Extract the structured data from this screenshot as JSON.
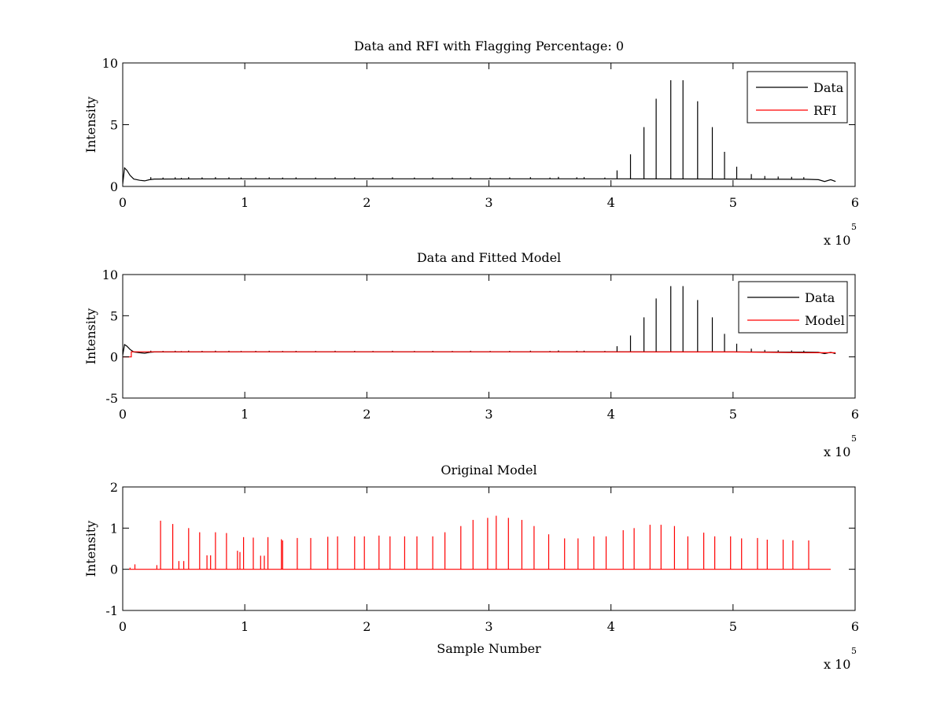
{
  "figure": {
    "background": "#ffffff",
    "axis_color": "#000000"
  },
  "chart_data": [
    {
      "type": "line",
      "title": "Data and RFI with Flagging Percentage: 0",
      "xlabel": "",
      "ylabel": "Intensity",
      "xlim": [
        0,
        600000
      ],
      "ylim": [
        0,
        10
      ],
      "xticks": [
        0,
        1,
        2,
        3,
        4,
        5,
        6
      ],
      "yticks": [
        0,
        5,
        10
      ],
      "x_exponent_base": "x 10",
      "x_exponent_power": "5",
      "legend": {
        "position": "top-right",
        "entries": [
          "Data",
          "RFI"
        ]
      },
      "series": [
        {
          "name": "Data",
          "color": "#000000",
          "baseline": [
            [
              0,
              0.2
            ],
            [
              1500,
              1.5
            ],
            [
              3500,
              1.3
            ],
            [
              6000,
              0.9
            ],
            [
              9000,
              0.6
            ],
            [
              14000,
              0.5
            ],
            [
              18000,
              0.45
            ],
            [
              22000,
              0.55
            ],
            [
              26000,
              0.6
            ],
            [
              100000,
              0.62
            ],
            [
              200000,
              0.62
            ],
            [
              300000,
              0.62
            ],
            [
              400000,
              0.62
            ],
            [
              500000,
              0.6
            ],
            [
              560000,
              0.58
            ],
            [
              570000,
              0.55
            ],
            [
              575000,
              0.4
            ],
            [
              580000,
              0.55
            ],
            [
              584000,
              0.4
            ]
          ],
          "spike_x": [
            23000,
            33000,
            43000,
            48000,
            54000,
            65000,
            76000,
            87000,
            97000,
            109000,
            120000,
            131000,
            142000,
            158000,
            174000,
            190000,
            205000,
            221000,
            239000,
            254000,
            270000,
            285000,
            301000,
            317000,
            334000,
            350000,
            357000,
            372000,
            378000,
            395000,
            405000,
            416000,
            427000,
            437000,
            449000,
            459000,
            471000,
            483000,
            493000,
            503000,
            515000,
            526000,
            537000,
            548000,
            558000
          ],
          "spike_y": [
            0.75,
            0.72,
            0.74,
            0.7,
            0.76,
            0.73,
            0.75,
            0.74,
            0.72,
            0.73,
            0.74,
            0.72,
            0.73,
            0.72,
            0.74,
            0.73,
            0.72,
            0.74,
            0.72,
            0.73,
            0.72,
            0.74,
            0.72,
            0.73,
            0.75,
            0.72,
            0.78,
            0.74,
            0.75,
            0.72,
            1.3,
            2.6,
            4.8,
            7.1,
            8.6,
            8.6,
            6.9,
            4.8,
            2.8,
            1.6,
            1.0,
            0.85,
            0.8,
            0.78,
            0.75
          ]
        },
        {
          "name": "RFI",
          "color": "#ff0000",
          "points": []
        }
      ]
    },
    {
      "type": "line",
      "title": "Data and Fitted Model",
      "xlabel": "",
      "ylabel": "Intensity",
      "xlim": [
        0,
        600000
      ],
      "ylim": [
        -5,
        10
      ],
      "xticks": [
        0,
        1,
        2,
        3,
        4,
        5,
        6
      ],
      "yticks": [
        -5,
        0,
        5,
        10
      ],
      "x_exponent_base": "x 10",
      "x_exponent_power": "5",
      "legend": {
        "position": "top-right",
        "entries": [
          "Data",
          "Model"
        ]
      },
      "series": [
        {
          "name": "Data",
          "color": "#000000",
          "baseline": [
            [
              0,
              0.2
            ],
            [
              1500,
              1.5
            ],
            [
              3500,
              1.3
            ],
            [
              6000,
              0.9
            ],
            [
              9000,
              0.6
            ],
            [
              14000,
              0.5
            ],
            [
              18000,
              0.45
            ],
            [
              22000,
              0.55
            ],
            [
              26000,
              0.6
            ],
            [
              100000,
              0.62
            ],
            [
              200000,
              0.62
            ],
            [
              300000,
              0.62
            ],
            [
              400000,
              0.62
            ],
            [
              500000,
              0.6
            ],
            [
              560000,
              0.58
            ],
            [
              570000,
              0.55
            ],
            [
              575000,
              0.4
            ],
            [
              580000,
              0.55
            ],
            [
              584000,
              0.4
            ]
          ],
          "spike_x": [
            23000,
            33000,
            43000,
            48000,
            54000,
            65000,
            76000,
            87000,
            97000,
            109000,
            120000,
            131000,
            142000,
            158000,
            174000,
            190000,
            205000,
            221000,
            239000,
            254000,
            270000,
            285000,
            301000,
            317000,
            334000,
            350000,
            357000,
            372000,
            378000,
            395000,
            405000,
            416000,
            427000,
            437000,
            449000,
            459000,
            471000,
            483000,
            493000,
            503000,
            515000,
            526000,
            537000,
            548000,
            558000
          ],
          "spike_y": [
            0.75,
            0.72,
            0.74,
            0.7,
            0.76,
            0.73,
            0.75,
            0.74,
            0.72,
            0.73,
            0.74,
            0.72,
            0.73,
            0.72,
            0.74,
            0.73,
            0.72,
            0.74,
            0.72,
            0.73,
            0.72,
            0.74,
            0.72,
            0.73,
            0.75,
            0.72,
            0.78,
            0.74,
            0.75,
            0.72,
            1.3,
            2.6,
            4.8,
            7.1,
            8.6,
            8.6,
            6.9,
            4.8,
            2.8,
            1.6,
            1.0,
            0.85,
            0.8,
            0.78,
            0.75
          ]
        },
        {
          "name": "Model",
          "color": "#ff0000",
          "points": [
            [
              0,
              0.0
            ],
            [
              7000,
              0.0
            ],
            [
              7000,
              0.62
            ],
            [
              300000,
              0.62
            ],
            [
              500000,
              0.6
            ],
            [
              530000,
              0.55
            ],
            [
              560000,
              0.5
            ],
            [
              584000,
              0.5
            ]
          ]
        }
      ]
    },
    {
      "type": "line",
      "title": "Original Model",
      "xlabel": "Sample Number",
      "ylabel": "Intensity",
      "xlim": [
        0,
        600000
      ],
      "ylim": [
        -1,
        2
      ],
      "xticks": [
        0,
        1,
        2,
        3,
        4,
        5,
        6
      ],
      "yticks": [
        -1,
        0,
        1,
        2
      ],
      "x_exponent_base": "x 10",
      "x_exponent_power": "5",
      "series": [
        {
          "name": "",
          "color": "#ff0000",
          "baseline": [
            [
              5000,
              0.0
            ],
            [
              580000,
              0.0
            ]
          ],
          "spike_x": [
            6000,
            10000,
            28000,
            31000,
            41000,
            46000,
            50000,
            54000,
            63000,
            69000,
            72000,
            76000,
            85000,
            94000,
            96000,
            99000,
            107000,
            113000,
            116000,
            119000,
            130000,
            131000,
            143000,
            154000,
            168000,
            176000,
            190000,
            198000,
            210000,
            219000,
            231000,
            241000,
            254000,
            264000,
            277000,
            287000,
            299000,
            306000,
            316000,
            327000,
            337000,
            349000,
            362000,
            373000,
            386000,
            396000,
            410000,
            419000,
            432000,
            441000,
            452000,
            463000,
            476000,
            485000,
            498000,
            507000,
            520000,
            528000,
            541000,
            549000,
            562000
          ],
          "spike_y": [
            0.04,
            0.12,
            0.1,
            1.18,
            1.1,
            0.2,
            0.2,
            1.0,
            0.9,
            0.34,
            0.34,
            0.9,
            0.88,
            0.45,
            0.42,
            0.78,
            0.77,
            0.33,
            0.33,
            0.78,
            0.73,
            0.7,
            0.76,
            0.76,
            0.79,
            0.8,
            0.8,
            0.8,
            0.82,
            0.8,
            0.8,
            0.8,
            0.8,
            0.9,
            1.05,
            1.2,
            1.25,
            1.3,
            1.25,
            1.2,
            1.05,
            0.85,
            0.75,
            0.75,
            0.8,
            0.8,
            0.95,
            1.0,
            1.08,
            1.08,
            1.05,
            0.8,
            0.89,
            0.8,
            0.8,
            0.75,
            0.76,
            0.72,
            0.72,
            0.7,
            0.7
          ]
        }
      ]
    }
  ]
}
